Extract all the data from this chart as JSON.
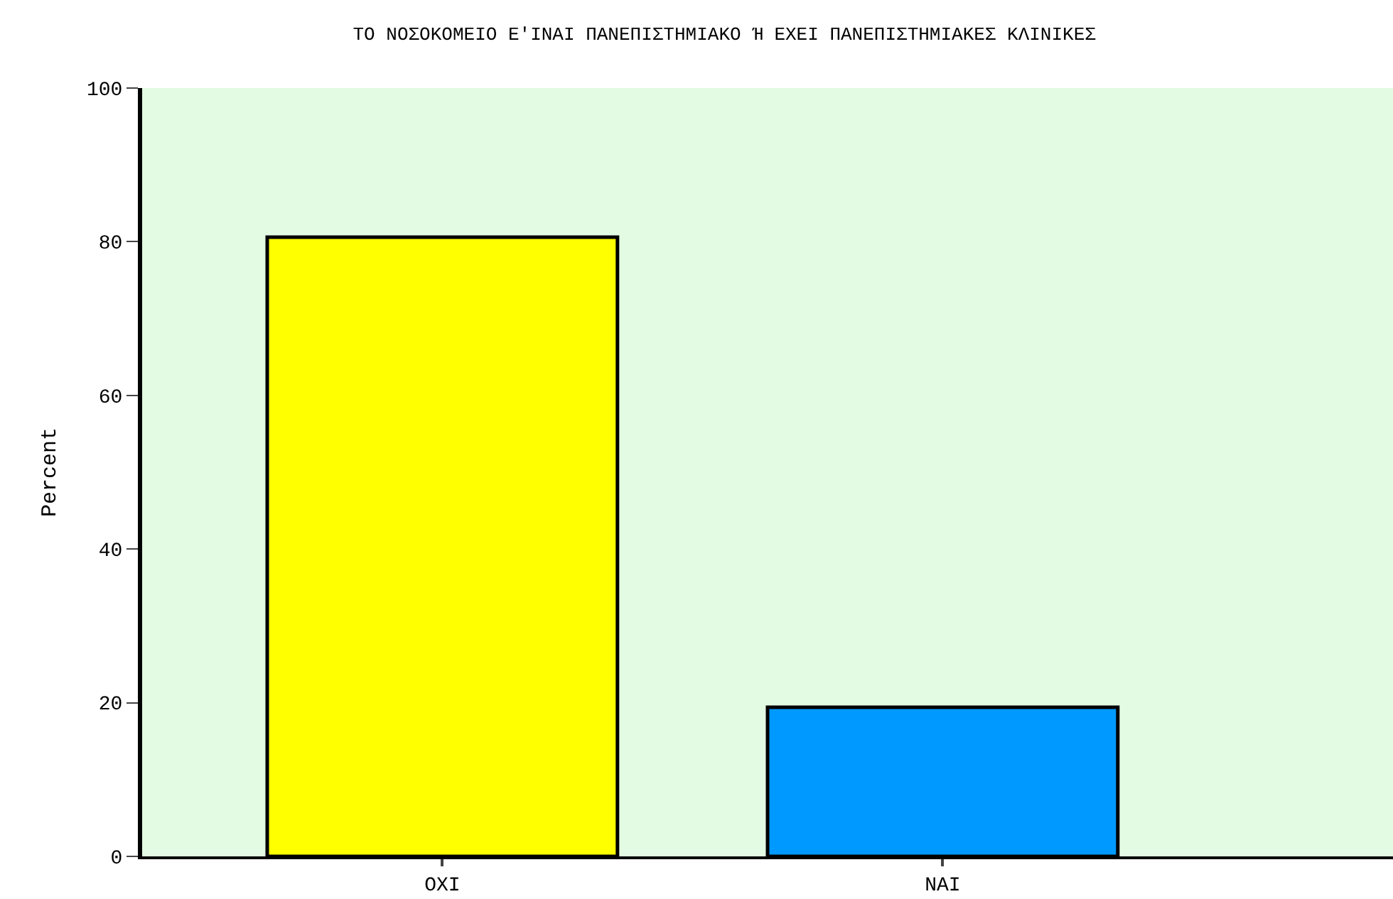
{
  "chart_data": {
    "type": "bar",
    "title": "ΤΟ ΝΟΣΟΚΟΜΕΙΟ Ε'ΙΝΑΙ ΠΑΝΕΠΙΣΤΗΜΙΑΚΟ Ή ΕΧΕΙ ΠΑΝΕΠΙΣΤΗΜΙΑΚΕΣ ΚΛΙΝΙΚΕΣ",
    "ylabel": "Percent",
    "categories": [
      "ΟΧΙ",
      "ΝΑΙ"
    ],
    "values": [
      80.6,
      19.4
    ],
    "colors": [
      "#ffff00",
      "#0099ff"
    ],
    "ylim": [
      0,
      100
    ],
    "yticks": [
      0,
      20,
      40,
      60,
      80,
      100
    ],
    "grid": false,
    "legend": false
  }
}
